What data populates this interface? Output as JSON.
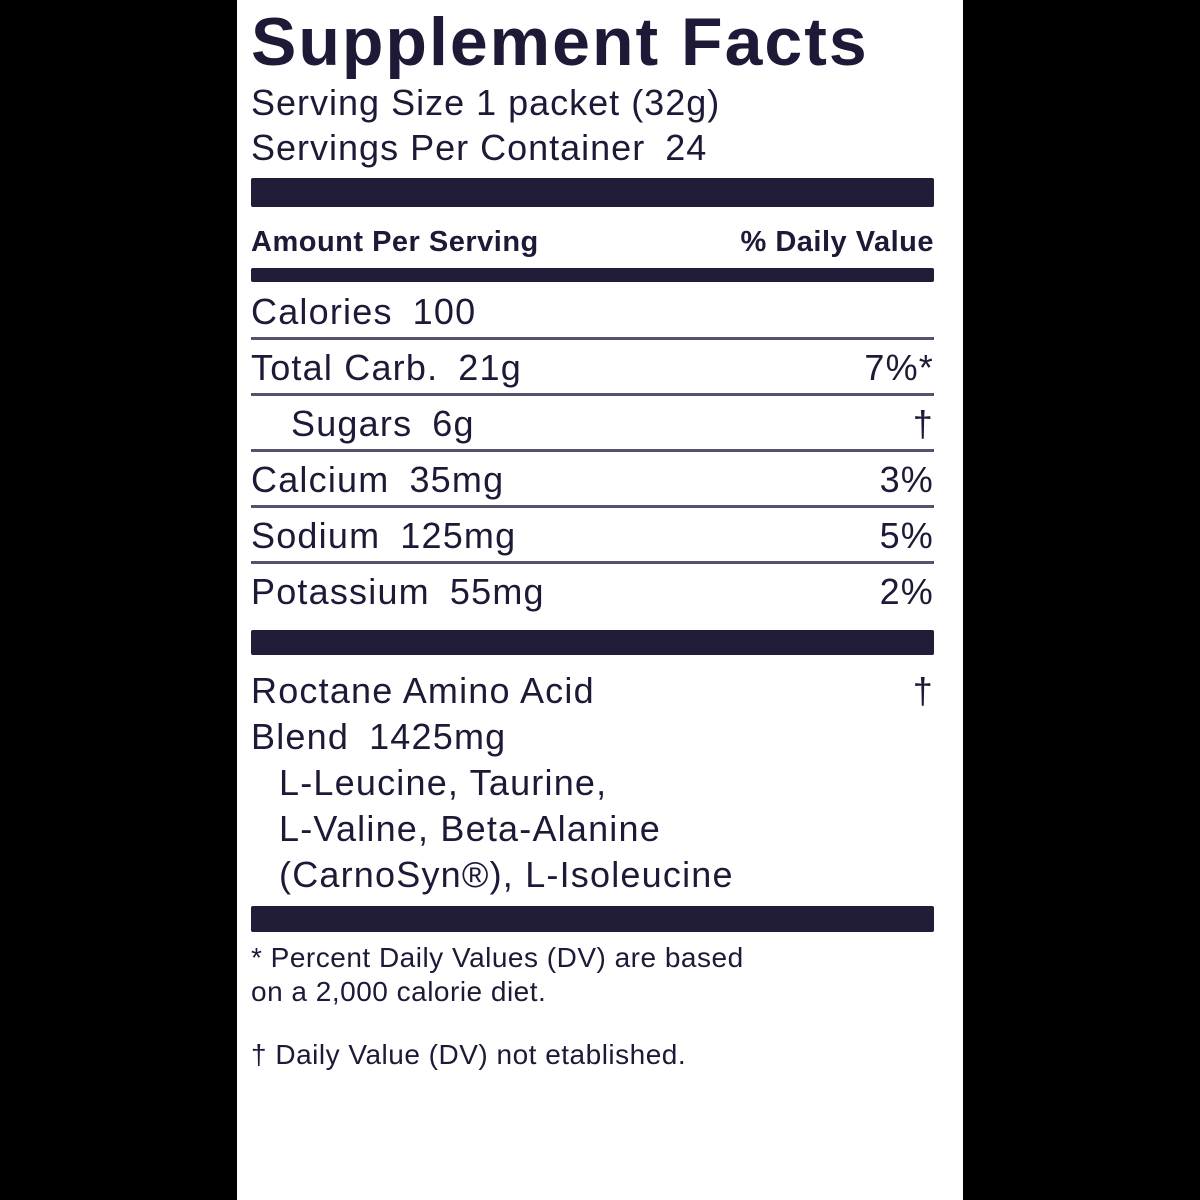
{
  "colors": {
    "background": "#000000",
    "panel_background": "#ffffff",
    "ink": "#1e1936",
    "divider_bar": "#211c38",
    "hairline": "#56526a"
  },
  "label": {
    "title": "Supplement Facts",
    "serving_size": "Serving Size 1 packet (32g)",
    "servings_per_container": {
      "label": "Servings Per Container",
      "value": "24"
    },
    "columns": {
      "left": "Amount Per Serving",
      "right": "% Daily Value"
    },
    "rows": [
      {
        "label": "Calories",
        "amount": "100",
        "dv": ""
      },
      {
        "label": "Total Carb.",
        "amount": "21g",
        "dv": "7%*"
      },
      {
        "label": "Sugars",
        "amount": "6g",
        "dv": "†"
      },
      {
        "label": "Calcium",
        "amount": "35mg",
        "dv": "3%"
      },
      {
        "label": "Sodium",
        "amount": "125mg",
        "dv": "5%"
      },
      {
        "label": "Potassium",
        "amount": "55mg",
        "dv": "2%"
      }
    ],
    "blend": {
      "name_line1": "Roctane Amino Acid",
      "name_line2_label": "Blend",
      "amount": "1425mg",
      "dv": "†",
      "ingredient_lines": [
        "L-Leucine, Taurine,",
        "L-Valine, Beta-Alanine",
        "(CarnoSyn®), L-Isoleucine"
      ]
    },
    "footnotes": [
      {
        "lines": [
          "* Percent Daily Values (DV) are based",
          "on a 2,000 calorie diet."
        ]
      },
      {
        "lines": [
          "† Daily Value (DV) not etablished."
        ]
      }
    ]
  }
}
